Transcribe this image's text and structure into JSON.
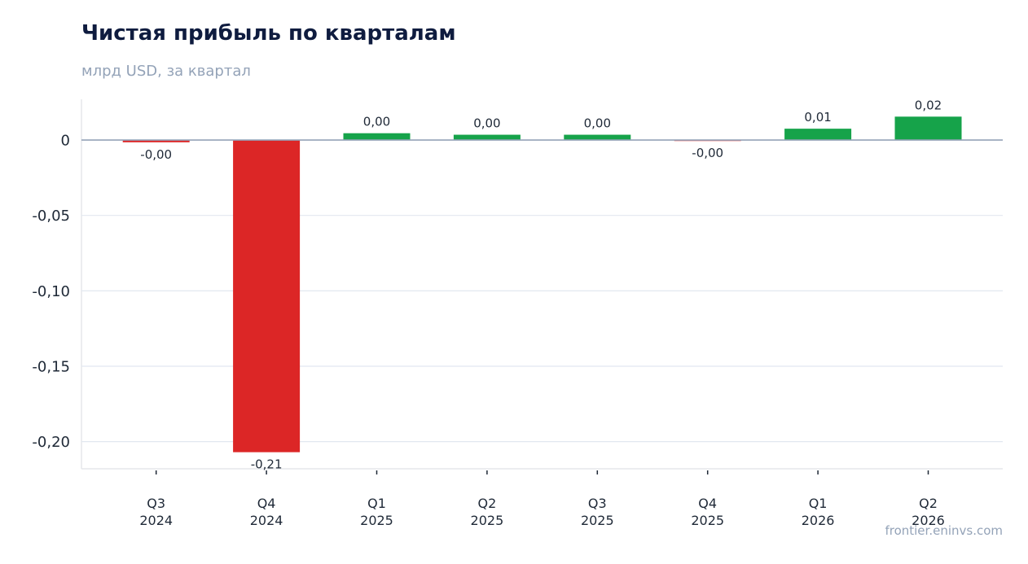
{
  "chart_data": {
    "type": "bar",
    "title": "Чистая прибыль по кварталам",
    "subtitle": "млрд USD, за квартал",
    "categories": [
      [
        "Q3",
        "2024"
      ],
      [
        "Q4",
        "2024"
      ],
      [
        "Q1",
        "2025"
      ],
      [
        "Q2",
        "2025"
      ],
      [
        "Q3",
        "2025"
      ],
      [
        "Q4",
        "2025"
      ],
      [
        "Q1",
        "2026"
      ],
      [
        "Q2",
        "2026"
      ]
    ],
    "values": [
      -0.0015,
      -0.207,
      0.0045,
      0.0035,
      0.0035,
      -0.0003,
      0.0075,
      0.0155
    ],
    "data_labels": [
      "-0,00",
      "-0,21",
      "0,00",
      "0,00",
      "0,00",
      "-0,00",
      "0,01",
      "0,02"
    ],
    "yticks": [
      0,
      -0.05,
      -0.1,
      -0.15,
      -0.2
    ],
    "ytick_labels": [
      "0",
      "-0,05",
      "-0,10",
      "-0,15",
      "-0,20"
    ],
    "ylim": [
      -0.218,
      0.027
    ],
    "grid": true,
    "colors": {
      "positive": "#16a34a",
      "negative": "#dc2626",
      "grid": "#e2e8f0",
      "zero_line": "#94a3b8",
      "axis": "#e5e7eb"
    }
  },
  "watermark": "frontier.eninvs.com"
}
